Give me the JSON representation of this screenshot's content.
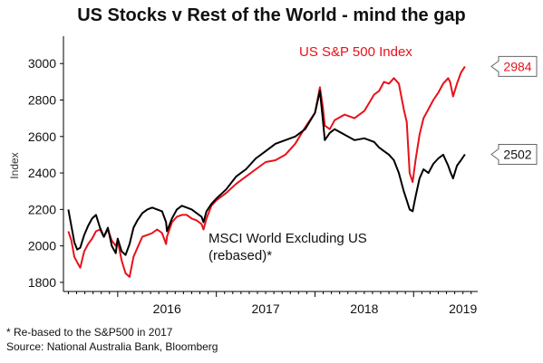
{
  "title": "US Stocks v Rest of the World - mind the gap",
  "footnote": "* Re-based to the S&P500 in 2017",
  "source": "Source: National Australia Bank, Bloomberg",
  "colors": {
    "sp500": "#e8111a",
    "msci": "#000000"
  },
  "chart_data": {
    "type": "line",
    "ylabel": "Index",
    "ylim": [
      1750,
      3150
    ],
    "yticks": [
      1800,
      2000,
      2200,
      2400,
      2600,
      2800,
      3000
    ],
    "xlim": [
      2015.45,
      2019.65
    ],
    "xtick_labels": [
      "2016",
      "2017",
      "2018",
      "2019"
    ],
    "grid": false,
    "series": [
      {
        "name": "US S&P 500 Index",
        "color": "#e8111a",
        "last_value": "2984",
        "x": [
          2015.5,
          2015.53,
          2015.56,
          2015.59,
          2015.62,
          2015.66,
          2015.7,
          2015.74,
          2015.78,
          2015.82,
          2015.86,
          2015.9,
          2015.94,
          2015.98,
          2016.0,
          2016.04,
          2016.08,
          2016.12,
          2016.16,
          2016.2,
          2016.25,
          2016.3,
          2016.35,
          2016.4,
          2016.45,
          2016.49,
          2016.5,
          2016.55,
          2016.6,
          2016.65,
          2016.7,
          2016.75,
          2016.8,
          2016.85,
          2016.87,
          2016.9,
          2016.95,
          2017.0,
          2017.1,
          2017.2,
          2017.3,
          2017.4,
          2017.5,
          2017.6,
          2017.7,
          2017.8,
          2017.9,
          2018.0,
          2018.05,
          2018.08,
          2018.1,
          2018.15,
          2018.2,
          2018.3,
          2018.4,
          2018.5,
          2018.6,
          2018.65,
          2018.7,
          2018.75,
          2018.8,
          2018.85,
          2018.9,
          2018.93,
          2018.96,
          2018.99,
          2019.02,
          2019.06,
          2019.1,
          2019.15,
          2019.2,
          2019.25,
          2019.3,
          2019.35,
          2019.37,
          2019.4,
          2019.44,
          2019.48,
          2019.52
        ],
        "values": [
          2080,
          2030,
          1940,
          1910,
          1880,
          1970,
          2010,
          2040,
          2080,
          2090,
          2050,
          2090,
          2030,
          2000,
          2030,
          1920,
          1850,
          1830,
          1940,
          1990,
          2050,
          2060,
          2070,
          2090,
          2070,
          2010,
          2050,
          2130,
          2160,
          2170,
          2170,
          2150,
          2140,
          2120,
          2090,
          2150,
          2220,
          2250,
          2290,
          2340,
          2380,
          2420,
          2460,
          2470,
          2500,
          2560,
          2650,
          2730,
          2870,
          2760,
          2660,
          2640,
          2690,
          2720,
          2700,
          2740,
          2830,
          2850,
          2900,
          2890,
          2920,
          2890,
          2750,
          2680,
          2400,
          2350,
          2470,
          2610,
          2700,
          2750,
          2800,
          2840,
          2890,
          2920,
          2900,
          2820,
          2890,
          2950,
          2984
        ]
      },
      {
        "name": "MSCI World Excluding US (rebased)*",
        "color": "#000000",
        "last_value": "2502",
        "x": [
          2015.5,
          2015.53,
          2015.56,
          2015.59,
          2015.62,
          2015.66,
          2015.7,
          2015.74,
          2015.78,
          2015.82,
          2015.86,
          2015.9,
          2015.94,
          2015.98,
          2016.0,
          2016.04,
          2016.08,
          2016.12,
          2016.16,
          2016.2,
          2016.25,
          2016.3,
          2016.35,
          2016.4,
          2016.45,
          2016.49,
          2016.5,
          2016.55,
          2016.6,
          2016.65,
          2016.7,
          2016.75,
          2016.8,
          2016.85,
          2016.87,
          2016.9,
          2016.95,
          2017.0,
          2017.1,
          2017.2,
          2017.3,
          2017.4,
          2017.5,
          2017.6,
          2017.7,
          2017.8,
          2017.9,
          2018.0,
          2018.05,
          2018.08,
          2018.1,
          2018.15,
          2018.2,
          2018.3,
          2018.4,
          2018.5,
          2018.6,
          2018.65,
          2018.7,
          2018.75,
          2018.8,
          2018.85,
          2018.9,
          2018.93,
          2018.96,
          2018.99,
          2019.02,
          2019.06,
          2019.1,
          2019.15,
          2019.2,
          2019.25,
          2019.3,
          2019.35,
          2019.37,
          2019.4,
          2019.44,
          2019.48,
          2019.52
        ],
        "values": [
          2200,
          2110,
          2020,
          1980,
          1990,
          2060,
          2110,
          2150,
          2170,
          2100,
          2050,
          2100,
          2000,
          1960,
          2040,
          1970,
          1950,
          2010,
          2100,
          2140,
          2180,
          2200,
          2210,
          2200,
          2190,
          2130,
          2080,
          2150,
          2200,
          2220,
          2210,
          2200,
          2180,
          2160,
          2130,
          2190,
          2230,
          2260,
          2310,
          2380,
          2420,
          2480,
          2520,
          2560,
          2580,
          2600,
          2640,
          2730,
          2850,
          2690,
          2580,
          2620,
          2640,
          2610,
          2580,
          2590,
          2570,
          2540,
          2520,
          2500,
          2470,
          2400,
          2300,
          2250,
          2200,
          2190,
          2270,
          2370,
          2420,
          2400,
          2450,
          2480,
          2500,
          2440,
          2410,
          2370,
          2440,
          2470,
          2502
        ]
      }
    ],
    "annotations": {
      "sp500_label": "US S&P 500 Index",
      "msci_label_line1": "MSCI World Excluding US",
      "msci_label_line2": "(rebased)*"
    }
  }
}
